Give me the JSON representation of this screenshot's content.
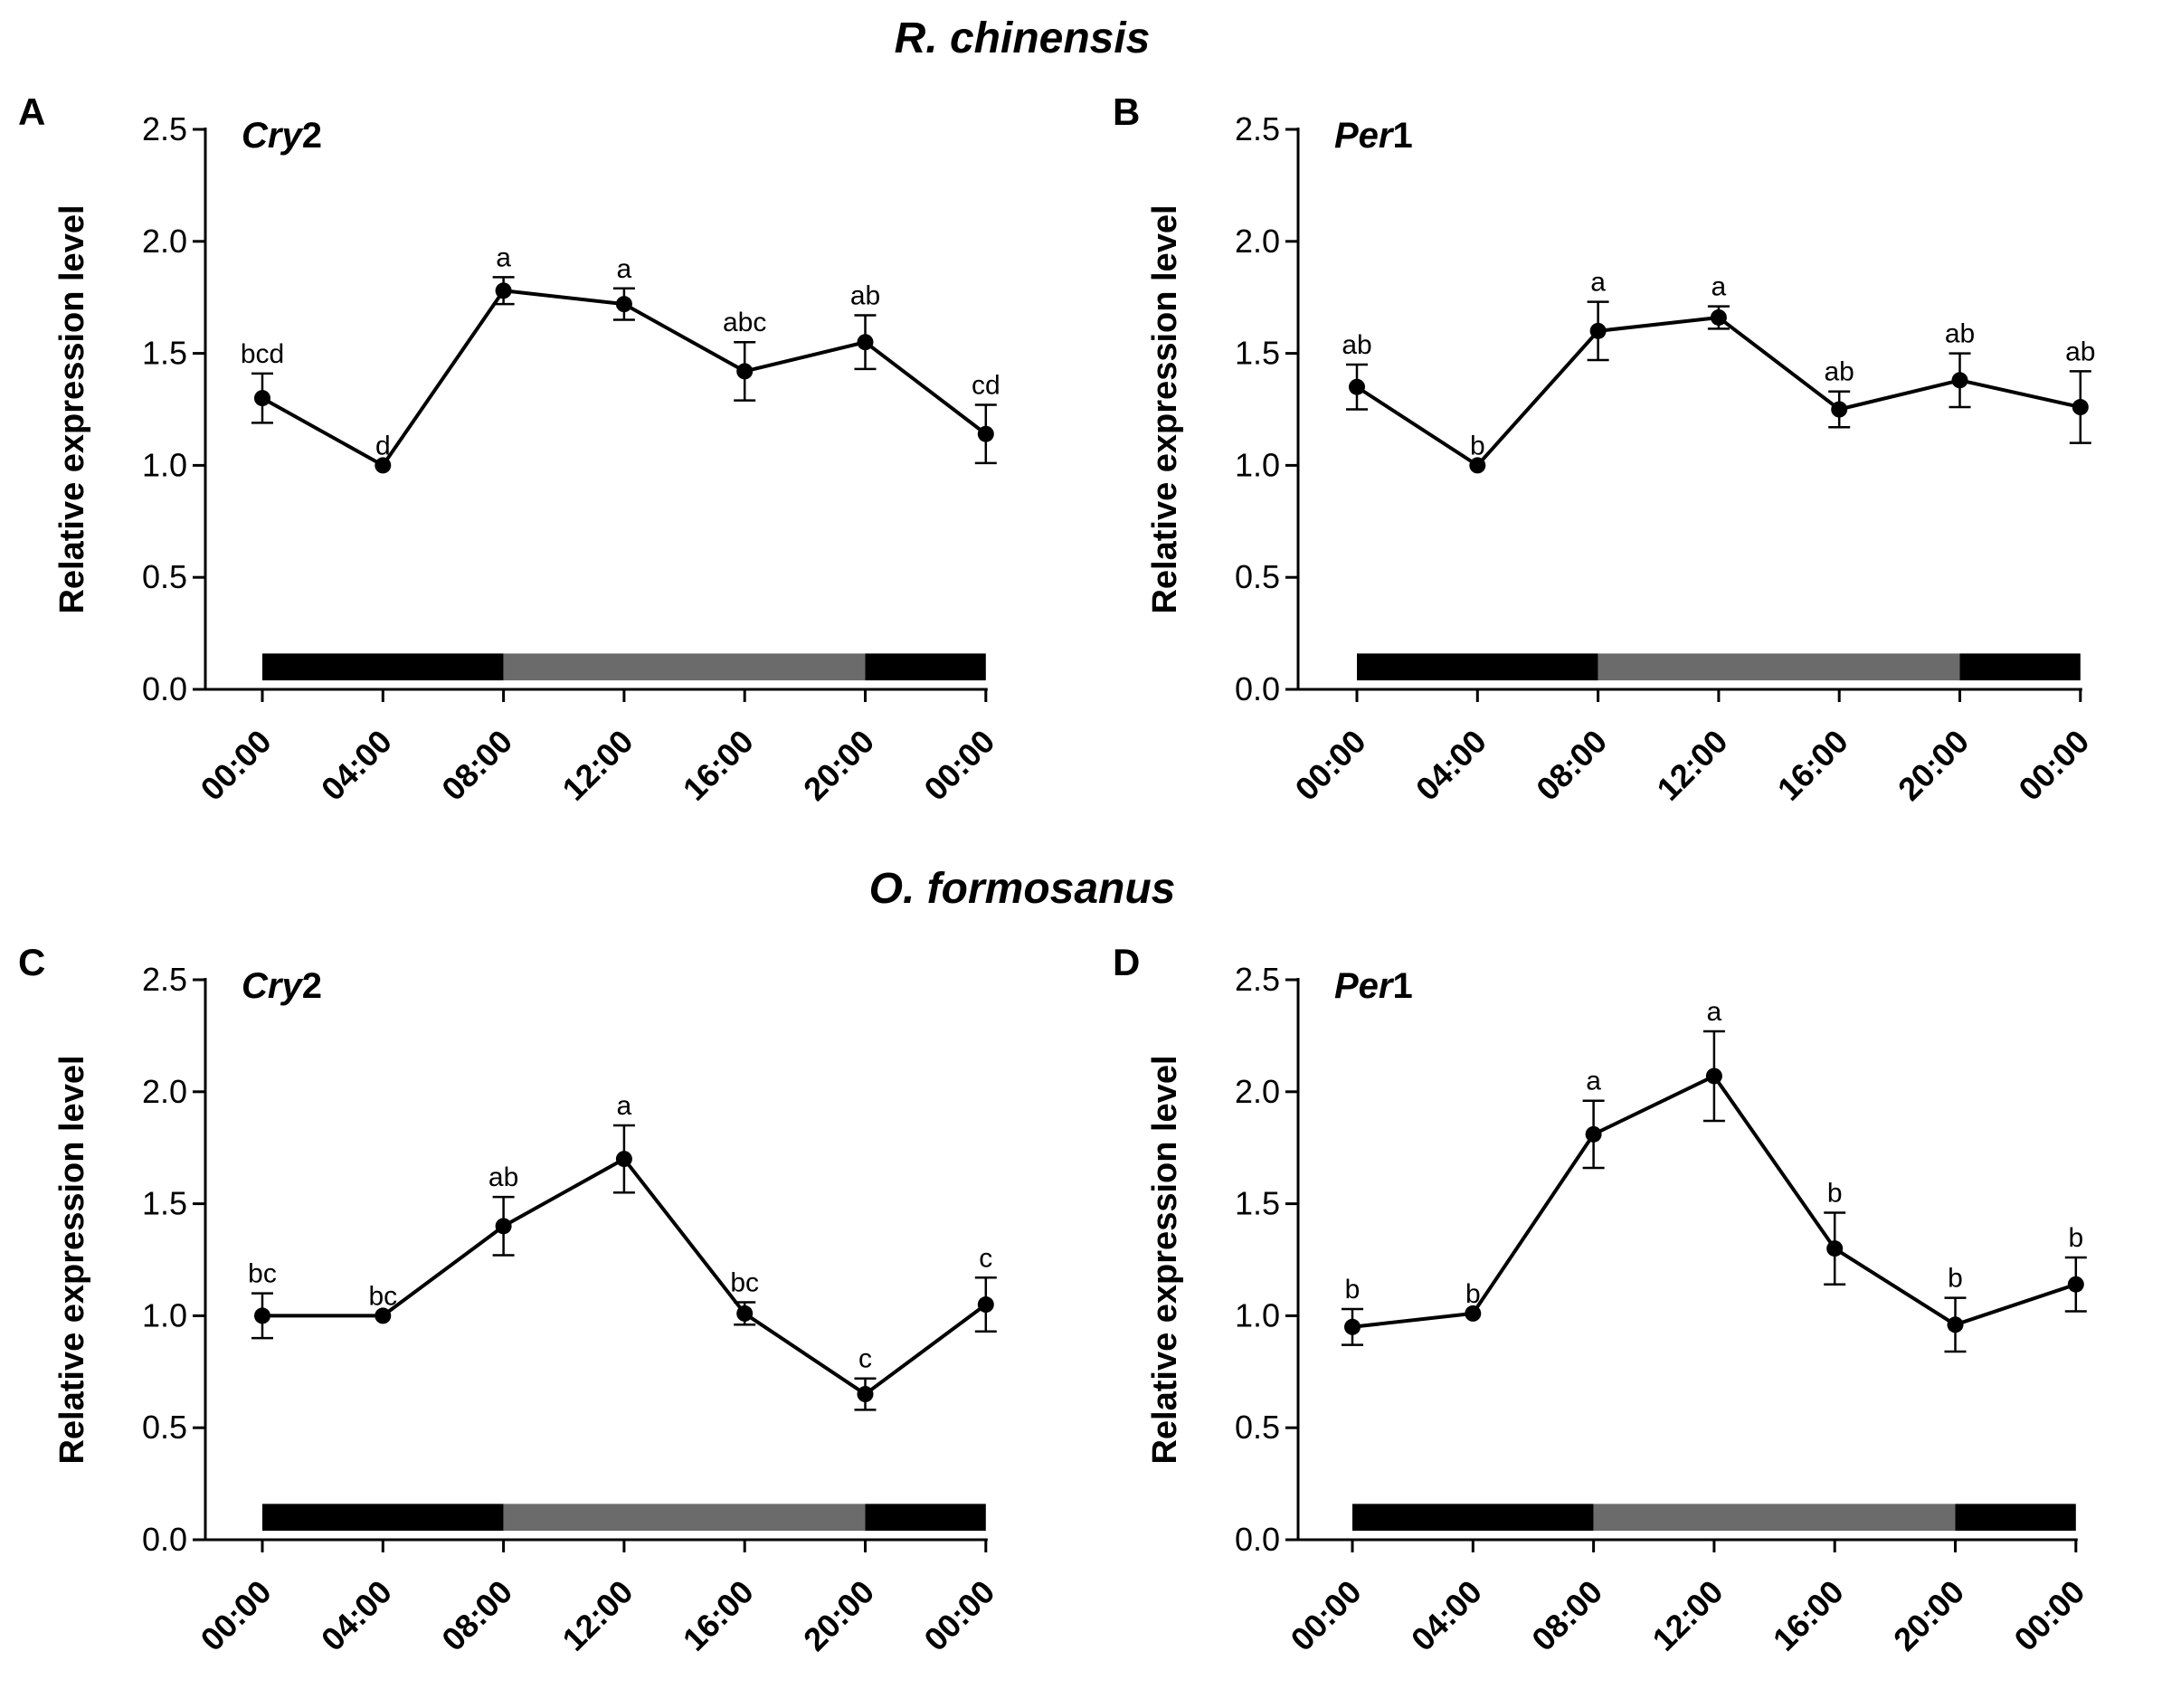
{
  "sections": [
    {
      "title": "R. chinensis"
    },
    {
      "title": "O. formosanus"
    }
  ],
  "colors": {
    "line": "#000000",
    "dark_bar": "#000000",
    "light_bar": "#6b6b6b"
  },
  "chart_data": [
    {
      "panel": "A",
      "gene_italic": "Cry",
      "gene_num": "2",
      "type": "line",
      "ylabel": "Relative expression level",
      "ylim": [
        0,
        2.5
      ],
      "yticks": [
        "0.0",
        "0.5",
        "1.0",
        "1.5",
        "2.0",
        "2.5"
      ],
      "x": [
        "00:00",
        "04:00",
        "08:00",
        "12:00",
        "16:00",
        "20:00",
        "00:00"
      ],
      "values": [
        1.3,
        1.0,
        1.78,
        1.72,
        1.42,
        1.55,
        1.14
      ],
      "errors": [
        0.11,
        0.0,
        0.06,
        0.07,
        0.13,
        0.12,
        0.13
      ],
      "labels": [
        "bcd",
        "d",
        "a",
        "a",
        "abc",
        "ab",
        "cd"
      ],
      "photoperiod": [
        {
          "from": 0,
          "to": 2,
          "phase": "dark"
        },
        {
          "from": 2,
          "to": 5,
          "phase": "light"
        },
        {
          "from": 5,
          "to": 6,
          "phase": "dark"
        }
      ]
    },
    {
      "panel": "B",
      "gene_italic": "Per",
      "gene_num": "1",
      "type": "line",
      "ylabel": "Relative expression level",
      "ylim": [
        0,
        2.5
      ],
      "yticks": [
        "0.0",
        "0.5",
        "1.0",
        "1.5",
        "2.0",
        "2.5"
      ],
      "x": [
        "00:00",
        "04:00",
        "08:00",
        "12:00",
        "16:00",
        "20:00",
        "00:00"
      ],
      "values": [
        1.35,
        1.0,
        1.6,
        1.66,
        1.25,
        1.38,
        1.26
      ],
      "errors": [
        0.1,
        0.0,
        0.13,
        0.05,
        0.08,
        0.12,
        0.16
      ],
      "labels": [
        "ab",
        "b",
        "a",
        "a",
        "ab",
        "ab",
        "ab"
      ],
      "photoperiod": [
        {
          "from": 0,
          "to": 2,
          "phase": "dark"
        },
        {
          "from": 2,
          "to": 5,
          "phase": "light"
        },
        {
          "from": 5,
          "to": 6,
          "phase": "dark"
        }
      ]
    },
    {
      "panel": "C",
      "gene_italic": "Cry",
      "gene_num": "2",
      "type": "line",
      "ylabel": "Relative expression level",
      "ylim": [
        0,
        2.5
      ],
      "yticks": [
        "0.0",
        "0.5",
        "1.0",
        "1.5",
        "2.0",
        "2.5"
      ],
      "x": [
        "00:00",
        "04:00",
        "08:00",
        "12:00",
        "16:00",
        "20:00",
        "00:00"
      ],
      "values": [
        1.0,
        1.0,
        1.4,
        1.7,
        1.01,
        0.65,
        1.05
      ],
      "errors": [
        0.1,
        0.0,
        0.13,
        0.15,
        0.05,
        0.07,
        0.12
      ],
      "labels": [
        "bc",
        "bc",
        "ab",
        "a",
        "bc",
        "c",
        "c"
      ],
      "photoperiod": [
        {
          "from": 0,
          "to": 2,
          "phase": "dark"
        },
        {
          "from": 2,
          "to": 5,
          "phase": "light"
        },
        {
          "from": 5,
          "to": 6,
          "phase": "dark"
        }
      ]
    },
    {
      "panel": "D",
      "gene_italic": "Per",
      "gene_num": "1",
      "type": "line",
      "ylabel": "Relative expression level",
      "ylim": [
        0,
        2.5
      ],
      "yticks": [
        "0.0",
        "0.5",
        "1.0",
        "1.5",
        "2.0",
        "2.5"
      ],
      "x": [
        "00:00",
        "04:00",
        "08:00",
        "12:00",
        "16:00",
        "20:00",
        "00:00"
      ],
      "values": [
        0.95,
        1.01,
        1.81,
        2.07,
        1.3,
        0.96,
        1.14
      ],
      "errors": [
        0.08,
        0.0,
        0.15,
        0.2,
        0.16,
        0.12,
        0.12
      ],
      "labels": [
        "b",
        "b",
        "a",
        "a",
        "b",
        "b",
        "b"
      ],
      "photoperiod": [
        {
          "from": 0,
          "to": 2,
          "phase": "dark"
        },
        {
          "from": 2,
          "to": 5,
          "phase": "light"
        },
        {
          "from": 5,
          "to": 6,
          "phase": "dark"
        }
      ]
    }
  ]
}
